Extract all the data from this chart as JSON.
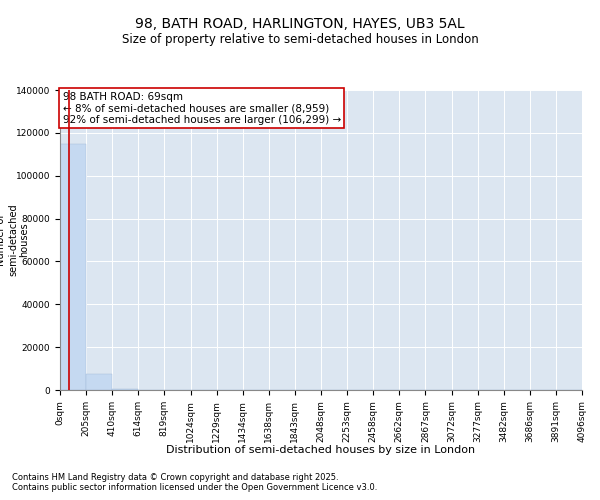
{
  "title": "98, BATH ROAD, HARLINGTON, HAYES, UB3 5AL",
  "subtitle": "Size of property relative to semi-detached houses in London",
  "xlabel": "Distribution of semi-detached houses by size in London",
  "ylabel": "Number of\nsemi-detached\nhouses",
  "annotation_title": "98 BATH ROAD: 69sqm",
  "annotation_line1": "← 8% of semi-detached houses are smaller (8,959)",
  "annotation_line2": "92% of semi-detached houses are larger (106,299) →",
  "footer1": "Contains HM Land Registry data © Crown copyright and database right 2025.",
  "footer2": "Contains public sector information licensed under the Open Government Licence v3.0.",
  "property_sqm": 69,
  "bin_edges": [
    0,
    205,
    410,
    614,
    819,
    1024,
    1229,
    1434,
    1638,
    1843,
    2048,
    2253,
    2458,
    2662,
    2867,
    3072,
    3277,
    3482,
    3686,
    3891,
    4096
  ],
  "bar_heights": [
    115000,
    7500,
    500,
    100,
    50,
    20,
    10,
    5,
    3,
    2,
    1,
    1,
    1,
    0,
    0,
    0,
    0,
    0,
    0,
    0
  ],
  "bar_color": "#c5d9f1",
  "bar_edge_color": "#a0b8d8",
  "property_line_color": "#cc0000",
  "annotation_box_color": "#cc0000",
  "plot_bg_color": "#dce6f1",
  "ylim": [
    0,
    140000
  ],
  "yticks": [
    0,
    20000,
    40000,
    60000,
    80000,
    100000,
    120000,
    140000
  ],
  "title_fontsize": 10,
  "subtitle_fontsize": 8.5,
  "ylabel_fontsize": 7,
  "xlabel_fontsize": 8,
  "tick_label_fontsize": 6.5,
  "annotation_fontsize": 7.5,
  "footer_fontsize": 6
}
